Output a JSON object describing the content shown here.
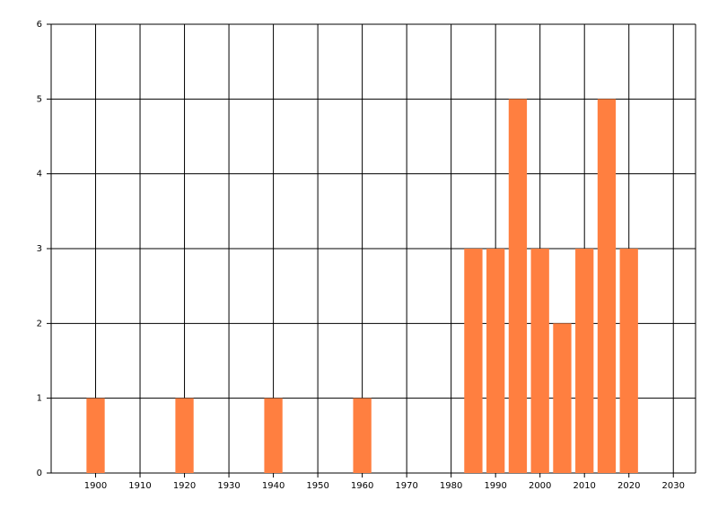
{
  "chart_data": {
    "type": "bar",
    "x": [
      1900,
      1920,
      1940,
      1960,
      1985,
      1990,
      1995,
      2000,
      2005,
      2010,
      2015,
      2020
    ],
    "values": [
      1,
      1,
      1,
      1,
      3,
      3,
      5,
      3,
      2,
      3,
      5,
      3
    ],
    "color": "#ff7f40",
    "xlim": [
      1890,
      2035
    ],
    "xticks": [
      1900,
      1910,
      1920,
      1930,
      1940,
      1950,
      1960,
      1970,
      1980,
      1990,
      2000,
      2010,
      2020,
      2030
    ],
    "ylim": [
      0,
      6
    ],
    "yticks": [
      0,
      1,
      2,
      3,
      4,
      5,
      6
    ],
    "grid": true
  }
}
